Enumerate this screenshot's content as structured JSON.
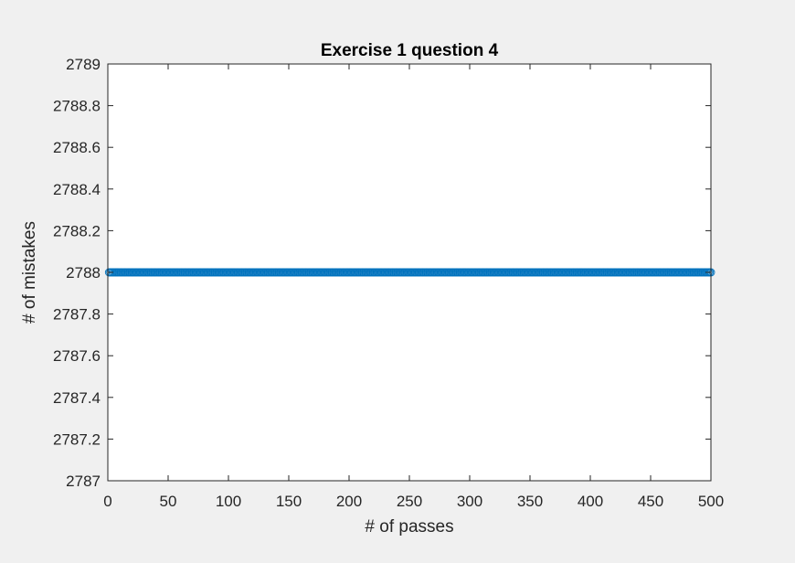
{
  "chart_data": {
    "type": "line",
    "title": "Exercise 1 question 4",
    "xlabel": "# of passes",
    "ylabel": "# of mistakes",
    "xlim": [
      0,
      500
    ],
    "ylim": [
      2787,
      2789
    ],
    "x_ticks": [
      0,
      50,
      100,
      150,
      200,
      250,
      300,
      350,
      400,
      450,
      500
    ],
    "x_tick_labels": [
      "0",
      "50",
      "100",
      "150",
      "200",
      "250",
      "300",
      "350",
      "400",
      "450",
      "500"
    ],
    "y_ticks": [
      2787,
      2787.2,
      2787.4,
      2787.6,
      2787.8,
      2788,
      2788.2,
      2788.4,
      2788.6,
      2788.8,
      2789
    ],
    "y_tick_labels": [
      "2787",
      "2787.2",
      "2787.4",
      "2787.6",
      "2787.8",
      "2788",
      "2788.2",
      "2788.4",
      "2788.6",
      "2788.8",
      "2789"
    ],
    "grid": false,
    "legend": "none",
    "marker": "circle",
    "series": [
      {
        "color": "#0072BD",
        "x_start": 1,
        "x_end": 500,
        "x_step": 1,
        "constant_value": 2788
      }
    ]
  }
}
